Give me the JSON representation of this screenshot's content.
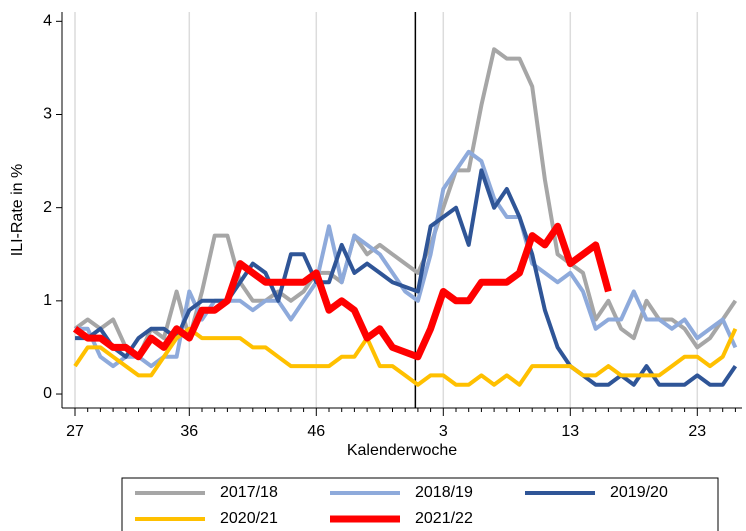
{
  "chart_data": {
    "type": "line",
    "y_label": "ILI-Rate in %",
    "x_label": "Kalenderwoche",
    "categories": [
      "27",
      null,
      null,
      null,
      null,
      null,
      null,
      null,
      null,
      "36",
      null,
      null,
      null,
      null,
      null,
      null,
      null,
      null,
      null,
      "46",
      null,
      null,
      null,
      null,
      null,
      null,
      null,
      null,
      null,
      "3",
      null,
      null,
      null,
      null,
      null,
      null,
      null,
      null,
      null,
      "13",
      null,
      null,
      null,
      null,
      null,
      null,
      null,
      null,
      null,
      "23",
      null,
      null,
      null
    ],
    "ylim": [
      -0.15,
      4.1
    ],
    "yticks": [
      0,
      1,
      2,
      3,
      4
    ],
    "grid": true,
    "legend": "bottom",
    "series": [
      {
        "name": "2017/18",
        "color": "#a6a6a6",
        "width": 4,
        "values": [
          0.7,
          0.8,
          0.7,
          0.8,
          0.5,
          0.4,
          0.7,
          0.6,
          1.1,
          0.6,
          1.1,
          1.7,
          1.7,
          1.2,
          1.0,
          1.0,
          1.1,
          1.0,
          1.1,
          1.3,
          1.3,
          1.2,
          1.7,
          1.5,
          1.6,
          1.5,
          1.4,
          1.3,
          1.6,
          2.0,
          2.4,
          2.4,
          3.1,
          3.7,
          3.6,
          3.6,
          3.3,
          2.3,
          1.5,
          1.4,
          1.3,
          0.8,
          1.0,
          0.7,
          0.6,
          1.0,
          0.8,
          0.8,
          0.7,
          0.5,
          0.6,
          0.8,
          1.0
        ]
      },
      {
        "name": "2018/19",
        "color": "#8eaadb",
        "width": 4,
        "values": [
          0.7,
          0.7,
          0.4,
          0.3,
          0.4,
          0.4,
          0.3,
          0.4,
          0.4,
          1.1,
          0.8,
          1.0,
          1.0,
          1.0,
          0.9,
          1.0,
          1.0,
          0.8,
          1.0,
          1.2,
          1.8,
          1.2,
          1.7,
          1.6,
          1.5,
          1.3,
          1.1,
          1.0,
          1.5,
          2.2,
          2.4,
          2.6,
          2.5,
          2.1,
          1.9,
          1.9,
          1.4,
          1.3,
          1.2,
          1.3,
          1.1,
          0.7,
          0.8,
          0.8,
          1.1,
          0.8,
          0.8,
          0.7,
          0.8,
          0.6,
          0.7,
          0.8,
          0.5
        ]
      },
      {
        "name": "2019/20",
        "color": "#2f5597",
        "width": 4,
        "values": [
          0.6,
          0.6,
          0.7,
          0.5,
          0.4,
          0.6,
          0.7,
          0.7,
          0.6,
          0.9,
          1.0,
          1.0,
          1.0,
          1.2,
          1.4,
          1.3,
          1.0,
          1.5,
          1.5,
          1.2,
          1.2,
          1.6,
          1.3,
          1.4,
          1.3,
          1.2,
          1.15,
          1.1,
          1.8,
          1.9,
          2.0,
          1.6,
          2.4,
          2.0,
          2.2,
          1.9,
          1.5,
          0.9,
          0.5,
          0.3,
          0.2,
          0.1,
          0.1,
          0.2,
          0.1,
          0.3,
          0.1,
          0.1,
          0.1,
          0.2,
          0.1,
          0.1,
          0.3
        ]
      },
      {
        "name": "2020/21",
        "color": "#ffc000",
        "width": 4,
        "values": [
          0.3,
          0.5,
          0.5,
          0.4,
          0.3,
          0.2,
          0.2,
          0.4,
          0.6,
          0.7,
          0.6,
          0.6,
          0.6,
          0.6,
          0.5,
          0.5,
          0.4,
          0.3,
          0.3,
          0.3,
          0.3,
          0.4,
          0.4,
          0.6,
          0.3,
          0.3,
          0.2,
          0.1,
          0.2,
          0.2,
          0.1,
          0.1,
          0.2,
          0.1,
          0.2,
          0.1,
          0.3,
          0.3,
          0.3,
          0.3,
          0.2,
          0.2,
          0.3,
          0.2,
          0.2,
          0.2,
          0.2,
          0.3,
          0.4,
          0.4,
          0.3,
          0.4,
          0.7
        ]
      },
      {
        "name": "2021/22",
        "color": "#ff0000",
        "width": 7,
        "values": [
          0.7,
          0.6,
          0.6,
          0.5,
          0.5,
          0.4,
          0.6,
          0.5,
          0.7,
          0.6,
          0.9,
          0.9,
          1.0,
          1.4,
          1.3,
          1.2,
          1.2,
          1.2,
          1.2,
          1.3,
          0.9,
          1.0,
          0.9,
          0.6,
          0.7,
          0.5,
          0.45,
          0.4,
          0.7,
          1.1,
          1.0,
          1.0,
          1.2,
          1.2,
          1.2,
          1.3,
          1.7,
          1.6,
          1.8,
          1.4,
          1.5,
          1.6,
          1.1,
          null,
          null,
          null,
          null,
          null,
          null,
          null,
          null,
          null,
          null
        ]
      }
    ]
  }
}
